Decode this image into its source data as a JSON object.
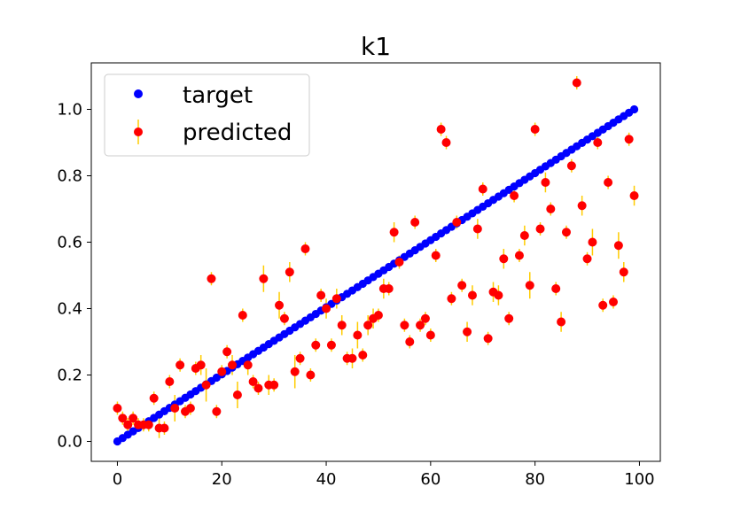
{
  "chart_data": {
    "type": "scatter",
    "title": "k1",
    "xlabel": "",
    "ylabel": "",
    "xlim": [
      -5,
      104
    ],
    "ylim": [
      -0.06,
      1.14
    ],
    "xticks": [
      0,
      20,
      40,
      60,
      80,
      100
    ],
    "yticks": [
      0.0,
      0.2,
      0.4,
      0.6,
      0.8,
      1.0
    ],
    "xtick_labels": [
      "0",
      "20",
      "40",
      "60",
      "80",
      "100"
    ],
    "ytick_labels": [
      "0.0",
      "0.2",
      "0.4",
      "0.6",
      "0.8",
      "1.0"
    ],
    "grid": false,
    "legend_position": "top-left",
    "colors": {
      "target": "#0000ff",
      "predicted": "#ff0000",
      "errorbar": "#ffcc00"
    },
    "series": [
      {
        "name": "target",
        "kind": "points",
        "x_start": 0,
        "x_end": 99,
        "y_start": 0.0,
        "y_end": 1.0,
        "count": 100
      },
      {
        "name": "predicted",
        "kind": "errorbar",
        "x": [
          0,
          1,
          2,
          3,
          4,
          5,
          6,
          7,
          8,
          9,
          10,
          11,
          12,
          13,
          14,
          15,
          16,
          17,
          18,
          19,
          20,
          21,
          22,
          23,
          24,
          25,
          26,
          27,
          28,
          29,
          30,
          31,
          32,
          33,
          34,
          35,
          36,
          37,
          38,
          39,
          40,
          41,
          42,
          43,
          44,
          45,
          46,
          47,
          48,
          49,
          50,
          51,
          52,
          53,
          54,
          55,
          56,
          57,
          58,
          59,
          60,
          61,
          62,
          63,
          64,
          65,
          66,
          67,
          68,
          69,
          70,
          71,
          72,
          73,
          74,
          75,
          76,
          77,
          78,
          79,
          80,
          81,
          82,
          83,
          84,
          85,
          86,
          87,
          88,
          89,
          90,
          91,
          92,
          93,
          94,
          95,
          96,
          97,
          98,
          99
        ],
        "y": [
          0.1,
          0.07,
          0.05,
          0.07,
          0.05,
          0.05,
          0.05,
          0.13,
          0.04,
          0.04,
          0.18,
          0.1,
          0.23,
          0.09,
          0.1,
          0.22,
          0.23,
          0.17,
          0.49,
          0.09,
          0.21,
          0.27,
          0.23,
          0.14,
          0.38,
          0.23,
          0.18,
          0.16,
          0.49,
          0.17,
          0.17,
          0.41,
          0.37,
          0.51,
          0.21,
          0.25,
          0.58,
          0.2,
          0.29,
          0.44,
          0.4,
          0.29,
          0.43,
          0.35,
          0.25,
          0.25,
          0.32,
          0.26,
          0.35,
          0.37,
          0.38,
          0.46,
          0.46,
          0.63,
          0.54,
          0.35,
          0.3,
          0.66,
          0.35,
          0.37,
          0.32,
          0.56,
          0.94,
          0.9,
          0.43,
          0.66,
          0.47,
          0.33,
          0.44,
          0.64,
          0.76,
          0.31,
          0.45,
          0.44,
          0.55,
          0.37,
          0.74,
          0.56,
          0.62,
          0.47,
          0.94,
          0.64,
          0.78,
          0.7,
          0.46,
          0.36,
          0.63,
          0.83,
          1.08,
          0.71,
          0.55,
          0.6,
          0.9,
          0.41,
          0.78,
          0.42,
          0.59,
          0.51,
          0.91,
          0.74
        ],
        "err": [
          0.02,
          0.02,
          0.02,
          0.02,
          0.02,
          0.02,
          0.02,
          0.02,
          0.03,
          0.02,
          0.02,
          0.04,
          0.02,
          0.02,
          0.02,
          0.02,
          0.03,
          0.05,
          0.02,
          0.02,
          0.02,
          0.02,
          0.03,
          0.04,
          0.02,
          0.03,
          0.02,
          0.02,
          0.04,
          0.03,
          0.02,
          0.04,
          0.02,
          0.03,
          0.05,
          0.02,
          0.02,
          0.02,
          0.02,
          0.02,
          0.03,
          0.02,
          0.03,
          0.03,
          0.02,
          0.03,
          0.04,
          0.02,
          0.03,
          0.03,
          0.02,
          0.03,
          0.02,
          0.03,
          0.02,
          0.02,
          0.02,
          0.02,
          0.02,
          0.02,
          0.02,
          0.02,
          0.02,
          0.02,
          0.02,
          0.02,
          0.02,
          0.03,
          0.03,
          0.03,
          0.02,
          0.02,
          0.03,
          0.03,
          0.03,
          0.02,
          0.02,
          0.02,
          0.03,
          0.04,
          0.02,
          0.02,
          0.03,
          0.02,
          0.02,
          0.03,
          0.02,
          0.02,
          0.02,
          0.03,
          0.02,
          0.04,
          0.02,
          0.02,
          0.02,
          0.02,
          0.04,
          0.03,
          0.02,
          0.03
        ]
      }
    ]
  }
}
